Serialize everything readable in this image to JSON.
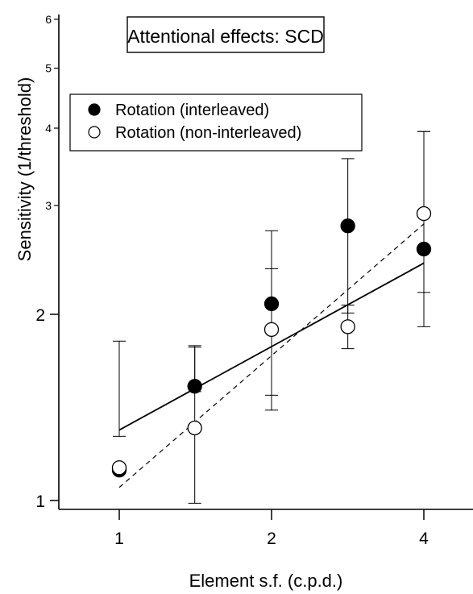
{
  "chart_data": {
    "type": "scatter",
    "title": "Attentional effects: SCD",
    "xlabel": "Element s.f. (c.p.d.)",
    "ylabel": "Sensitivity (1/threshold)",
    "x_scale": "log2",
    "y_scale": "log",
    "xlim": [
      0.75,
      5.4
    ],
    "ylim": [
      0.95,
      6
    ],
    "x_ticks": [
      {
        "value": 1,
        "label": "1"
      },
      {
        "value": 2,
        "label": "2"
      },
      {
        "value": 4,
        "label": "4"
      }
    ],
    "y_ticks_major": [
      {
        "value": 1,
        "label": "1"
      },
      {
        "value": 2,
        "label": "2"
      }
    ],
    "y_ticks_minor": [
      {
        "value": 3,
        "label": "3"
      },
      {
        "value": 4,
        "label": "4"
      },
      {
        "value": 5,
        "label": "5"
      },
      {
        "value": 6,
        "label": "6"
      }
    ],
    "legend_position": "top-left",
    "series": [
      {
        "name": "Rotation (interleaved)",
        "marker": "filled-circle",
        "color": "#000000",
        "x": [
          1,
          1.41,
          2,
          2.83,
          4
        ],
        "y": [
          1.12,
          1.53,
          2.08,
          2.78,
          2.55
        ],
        "err_low": [
          1.12,
          1.5,
          1.48,
          2.01,
          2.17
        ],
        "err_high": [
          1.12,
          1.78,
          2.73,
          3.57,
          3.95
        ],
        "fit": {
          "style": "solid",
          "x": [
            1,
            4
          ],
          "y": [
            1.3,
            2.42
          ]
        }
      },
      {
        "name": "Rotation (non-interleaved)",
        "marker": "open-circle",
        "color": "#000000",
        "x": [
          1,
          1.41,
          2,
          2.83,
          4
        ],
        "y": [
          1.13,
          1.31,
          1.89,
          1.91,
          2.91
        ],
        "err_low": [
          1.27,
          0.99,
          1.4,
          1.76,
          1.91
        ],
        "err_high": [
          1.81,
          1.77,
          2.37,
          2.07,
          3.95
        ],
        "fit": {
          "style": "dashed",
          "x": [
            1,
            4
          ],
          "y": [
            1.05,
            2.8
          ]
        }
      }
    ]
  }
}
